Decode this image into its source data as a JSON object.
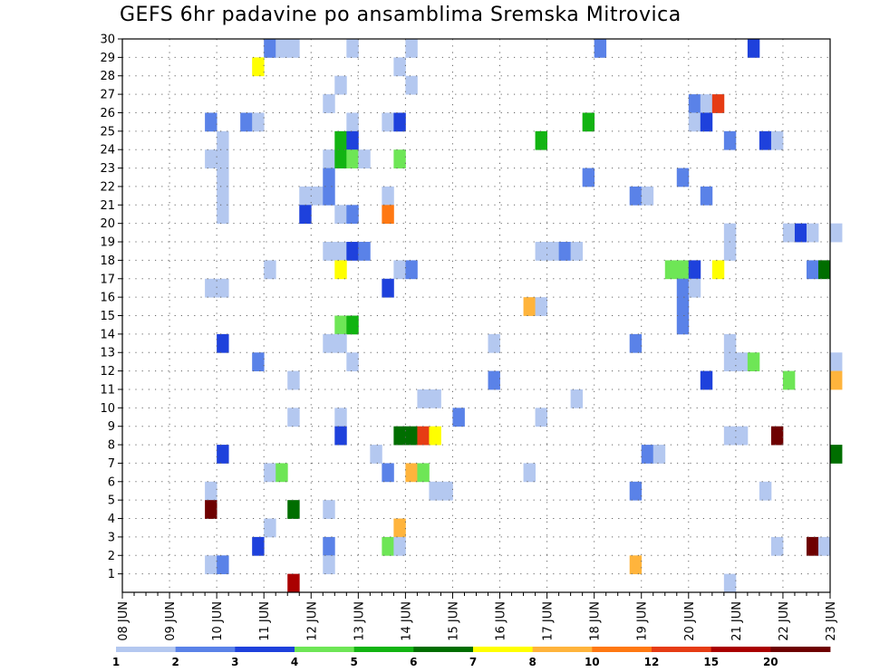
{
  "chart_data": {
    "type": "heatmap",
    "title": "GEFS 6hr padavine po ansamblima Sremska Mitrovica",
    "x_tick_labels": [
      "08 JUN",
      "09 JUN",
      "10 JUN",
      "11 JUN",
      "12 JUN",
      "13 JUN",
      "14 JUN",
      "15 JUN",
      "16 JUN",
      "17 JUN",
      "18 JUN",
      "19 JUN",
      "20 JUN",
      "21 JUN",
      "22 JUN",
      "23 JUN"
    ],
    "y_tick_labels": [
      "1",
      "2",
      "3",
      "4",
      "5",
      "6",
      "7",
      "8",
      "9",
      "10",
      "11",
      "12",
      "13",
      "14",
      "15",
      "16",
      "17",
      "18",
      "19",
      "20",
      "21",
      "22",
      "23",
      "24",
      "25",
      "26",
      "27",
      "28",
      "29",
      "30"
    ],
    "ylim": [
      0,
      30
    ],
    "time_steps_per_day": 4,
    "grid": "dotted",
    "legend": {
      "placement": "bottom",
      "colors": [
        "#b4c8f0",
        "#5a82e8",
        "#1e41dc",
        "#6ee656",
        "#12b412",
        "#006e00",
        "#ffff00",
        "#ffb43c",
        "#ff7812",
        "#e63c14",
        "#aa0000",
        "#6e0000"
      ],
      "labels": [
        "1",
        "2",
        "3",
        "4",
        "5",
        "6",
        "7",
        "8",
        "10",
        "12",
        "15",
        "20"
      ]
    },
    "cells": [
      [
        11.0,
        30,
        1
      ],
      [
        11.25,
        30,
        0
      ],
      [
        11.5,
        30,
        0
      ],
      [
        12.75,
        30,
        0
      ],
      [
        14.0,
        30,
        0
      ],
      [
        18.0,
        30,
        1
      ],
      [
        21.25,
        30,
        2
      ],
      [
        10.75,
        29,
        6
      ],
      [
        13.75,
        29,
        0
      ],
      [
        12.5,
        28,
        0
      ],
      [
        14.0,
        28,
        0
      ],
      [
        12.25,
        27,
        0
      ],
      [
        20.0,
        27,
        1
      ],
      [
        20.25,
        27,
        0
      ],
      [
        20.5,
        27,
        9
      ],
      [
        9.75,
        26,
        1
      ],
      [
        10.5,
        26,
        1
      ],
      [
        10.75,
        26,
        0
      ],
      [
        12.75,
        26,
        0
      ],
      [
        13.5,
        26,
        0
      ],
      [
        13.75,
        26,
        2
      ],
      [
        17.75,
        26,
        4
      ],
      [
        20.0,
        26,
        0
      ],
      [
        20.25,
        26,
        2
      ],
      [
        10.0,
        25,
        0
      ],
      [
        12.5,
        25,
        4
      ],
      [
        12.75,
        25,
        2
      ],
      [
        16.75,
        25,
        4
      ],
      [
        20.75,
        25,
        1
      ],
      [
        21.5,
        25,
        2
      ],
      [
        21.75,
        25,
        0
      ],
      [
        9.75,
        24,
        0
      ],
      [
        10.0,
        24,
        0
      ],
      [
        12.25,
        24,
        0
      ],
      [
        12.5,
        24,
        4
      ],
      [
        12.75,
        24,
        3
      ],
      [
        13.0,
        24,
        0
      ],
      [
        13.75,
        24,
        3
      ],
      [
        10.0,
        23,
        0
      ],
      [
        12.25,
        23,
        1
      ],
      [
        17.75,
        23,
        1
      ],
      [
        19.75,
        23,
        1
      ],
      [
        10.0,
        22,
        0
      ],
      [
        11.75,
        22,
        0
      ],
      [
        12.0,
        22,
        0
      ],
      [
        12.25,
        22,
        1
      ],
      [
        13.5,
        22,
        0
      ],
      [
        18.75,
        22,
        1
      ],
      [
        19.0,
        22,
        0
      ],
      [
        20.25,
        22,
        1
      ],
      [
        10.0,
        21,
        0
      ],
      [
        11.75,
        21,
        2
      ],
      [
        12.5,
        21,
        0
      ],
      [
        12.75,
        21,
        1
      ],
      [
        13.5,
        21,
        8
      ],
      [
        20.75,
        20,
        0
      ],
      [
        22.0,
        20,
        0
      ],
      [
        22.25,
        20,
        2
      ],
      [
        22.5,
        20,
        0
      ],
      [
        23.0,
        20,
        0
      ],
      [
        12.25,
        19,
        0
      ],
      [
        12.5,
        19,
        0
      ],
      [
        12.75,
        19,
        2
      ],
      [
        13.0,
        19,
        1
      ],
      [
        16.75,
        19,
        0
      ],
      [
        17.0,
        19,
        0
      ],
      [
        17.25,
        19,
        1
      ],
      [
        17.5,
        19,
        0
      ],
      [
        20.75,
        19,
        0
      ],
      [
        11.0,
        18,
        0
      ],
      [
        12.5,
        18,
        6
      ],
      [
        13.75,
        18,
        0
      ],
      [
        14.0,
        18,
        1
      ],
      [
        19.5,
        18,
        3
      ],
      [
        19.75,
        18,
        3
      ],
      [
        20.0,
        18,
        2
      ],
      [
        20.5,
        18,
        6
      ],
      [
        22.5,
        18,
        1
      ],
      [
        22.75,
        18,
        5
      ],
      [
        9.75,
        17,
        0
      ],
      [
        10.0,
        17,
        0
      ],
      [
        13.5,
        17,
        2
      ],
      [
        19.75,
        17,
        1
      ],
      [
        20.0,
        17,
        0
      ],
      [
        16.5,
        16,
        7
      ],
      [
        16.75,
        16,
        0
      ],
      [
        19.75,
        16,
        1
      ],
      [
        12.5,
        15,
        3
      ],
      [
        12.75,
        15,
        4
      ],
      [
        19.75,
        15,
        1
      ],
      [
        10.0,
        14,
        2
      ],
      [
        12.25,
        14,
        0
      ],
      [
        12.5,
        14,
        0
      ],
      [
        15.75,
        14,
        0
      ],
      [
        18.75,
        14,
        1
      ],
      [
        20.75,
        14,
        0
      ],
      [
        10.75,
        13,
        1
      ],
      [
        12.75,
        13,
        0
      ],
      [
        20.75,
        13,
        0
      ],
      [
        21.0,
        13,
        0
      ],
      [
        21.25,
        13,
        3
      ],
      [
        23.0,
        13,
        0
      ],
      [
        11.5,
        12,
        0
      ],
      [
        15.75,
        12,
        1
      ],
      [
        20.25,
        12,
        2
      ],
      [
        22.0,
        12,
        3
      ],
      [
        23.0,
        12,
        7
      ],
      [
        14.25,
        11,
        0
      ],
      [
        14.5,
        11,
        0
      ],
      [
        17.5,
        11,
        0
      ],
      [
        11.5,
        10,
        0
      ],
      [
        12.5,
        10,
        0
      ],
      [
        15.0,
        10,
        1
      ],
      [
        16.75,
        10,
        0
      ],
      [
        12.5,
        9,
        2
      ],
      [
        13.75,
        9,
        5
      ],
      [
        14.0,
        9,
        5
      ],
      [
        14.25,
        9,
        9
      ],
      [
        14.5,
        9,
        6
      ],
      [
        20.75,
        9,
        0
      ],
      [
        21.0,
        9,
        0
      ],
      [
        21.75,
        9,
        11
      ],
      [
        10.0,
        8,
        2
      ],
      [
        13.25,
        8,
        0
      ],
      [
        19.0,
        8,
        1
      ],
      [
        19.25,
        8,
        0
      ],
      [
        23.0,
        8,
        5
      ],
      [
        11.0,
        7,
        0
      ],
      [
        11.25,
        7,
        3
      ],
      [
        13.5,
        7,
        1
      ],
      [
        14.0,
        7,
        7
      ],
      [
        14.25,
        7,
        3
      ],
      [
        16.5,
        7,
        0
      ],
      [
        9.75,
        6,
        0
      ],
      [
        14.5,
        6,
        0
      ],
      [
        14.75,
        6,
        0
      ],
      [
        18.75,
        6,
        1
      ],
      [
        21.5,
        6,
        0
      ],
      [
        9.75,
        5,
        11
      ],
      [
        11.5,
        5,
        5
      ],
      [
        12.25,
        5,
        0
      ],
      [
        11.0,
        4,
        0
      ],
      [
        13.75,
        4,
        7
      ],
      [
        10.75,
        3,
        2
      ],
      [
        12.25,
        3,
        1
      ],
      [
        13.5,
        3,
        3
      ],
      [
        13.75,
        3,
        0
      ],
      [
        21.75,
        3,
        0
      ],
      [
        22.5,
        3,
        11
      ],
      [
        22.75,
        3,
        0
      ],
      [
        9.75,
        2,
        0
      ],
      [
        10.0,
        2,
        1
      ],
      [
        12.25,
        2,
        0
      ],
      [
        18.75,
        2,
        7
      ],
      [
        11.5,
        1,
        10
      ],
      [
        20.75,
        1,
        0
      ]
    ]
  }
}
